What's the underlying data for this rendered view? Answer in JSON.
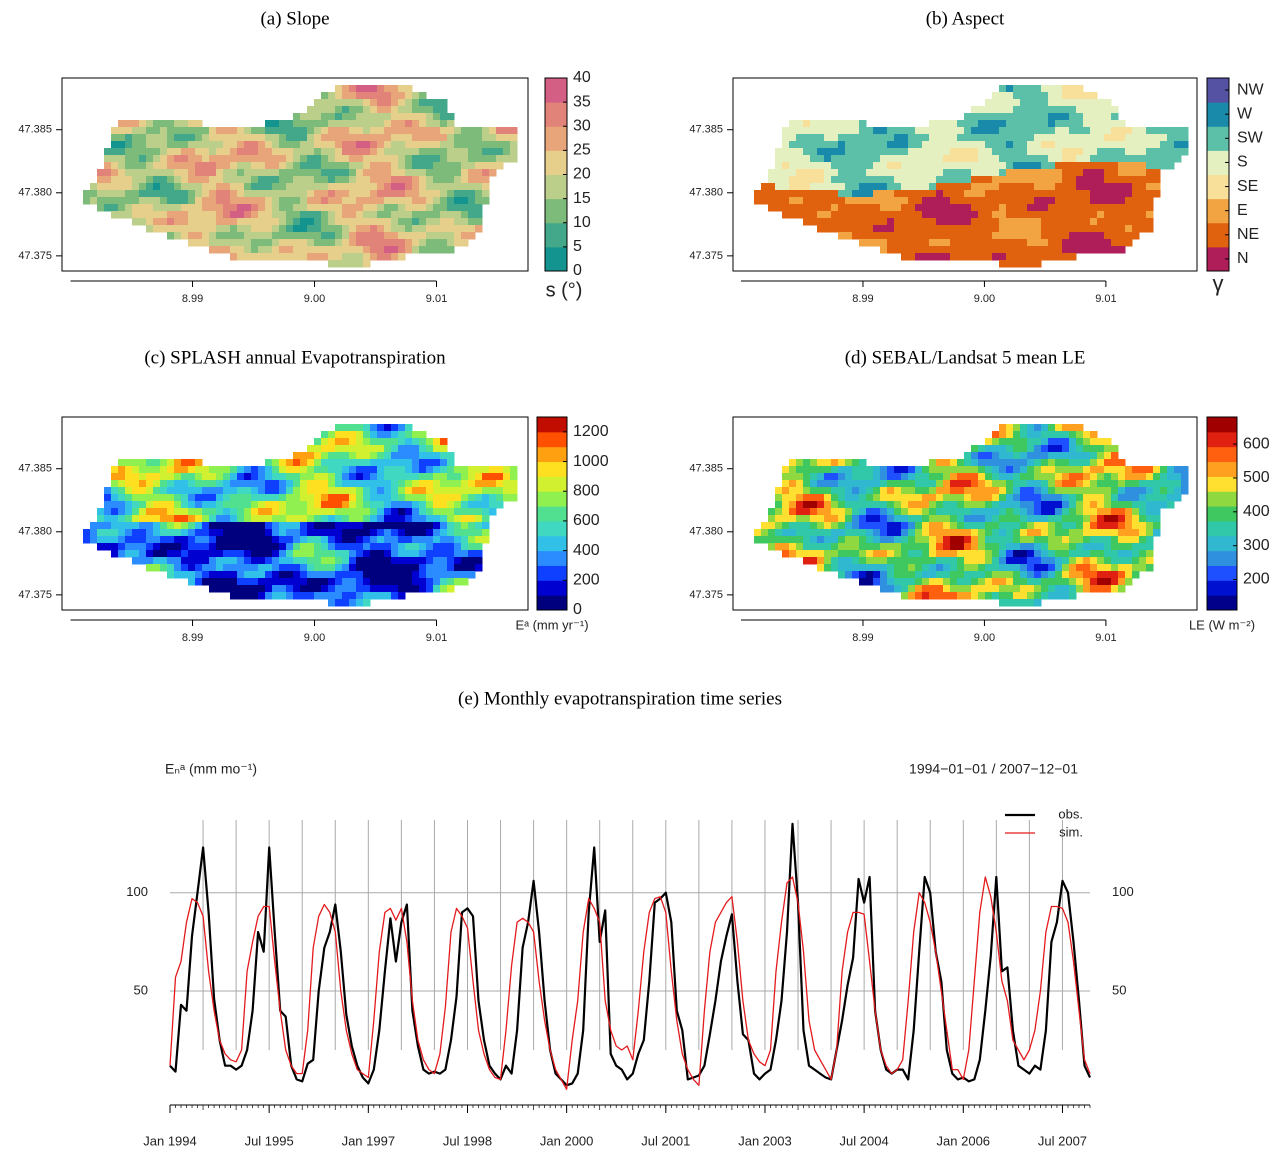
{
  "chart_data": [
    {
      "type": "raster",
      "title": "(a) Slope",
      "xlim": [
        8.9793,
        9.0175
      ],
      "ylim": [
        47.3738,
        47.3891
      ],
      "xticks": [
        8.99,
        {
          "value": 9,
          "label": "9.00"
        },
        9.01
      ],
      "yticks": [
        47.375,
        {
          "value": 47.38,
          "label": "47.380"
        },
        47.385
      ],
      "colorbar": {
        "label": "s (°)",
        "lim": [
          0,
          40
        ],
        "ticks": [
          0,
          5,
          10,
          15,
          20,
          25,
          30,
          35,
          40
        ],
        "colors": [
          "#13948f",
          "#43a889",
          "#7dbb7a",
          "#bccf8a",
          "#e5cf8a",
          "#e8a57a",
          "#e2837a",
          "#d35f85"
        ]
      }
    },
    {
      "type": "raster",
      "title": "(b) Aspect",
      "xlim": [
        8.9793,
        9.0175
      ],
      "ylim": [
        47.3738,
        47.3891
      ],
      "xticks": [
        8.99,
        {
          "value": 9,
          "label": "9.00"
        },
        9.01
      ],
      "yticks": [
        47.375,
        {
          "value": 47.38,
          "label": "47.380"
        },
        47.385
      ],
      "legend": {
        "label": "γ",
        "categories": [
          "N",
          "NE",
          "E",
          "SE",
          "S",
          "SW",
          "W",
          "NW"
        ],
        "colors": [
          "#b01e5a",
          "#e0620f",
          "#f2a443",
          "#f8e09a",
          "#e4f0c0",
          "#5cc0a8",
          "#1a8aaa",
          "#5552a3"
        ]
      }
    },
    {
      "type": "raster",
      "title": "(c) SPLASH annual Evapotranspiration",
      "xlim": [
        8.9793,
        9.0175
      ],
      "ylim": [
        47.3738,
        47.3891
      ],
      "xticks": [
        8.99,
        {
          "value": 9,
          "label": "9.00"
        },
        9.01
      ],
      "yticks": [
        47.375,
        {
          "value": 47.38,
          "label": "47.380"
        },
        47.385
      ],
      "colorbar": {
        "label": "Eᵃ (mm yr⁻¹)",
        "lim": [
          0,
          1300
        ],
        "ticks": [
          0,
          200,
          400,
          600,
          800,
          1000,
          1200
        ],
        "colors": [
          "#00007f",
          "#0000d0",
          "#1040ff",
          "#2a8cff",
          "#30c0e8",
          "#40d8c0",
          "#50e090",
          "#90f050",
          "#d0f030",
          "#ffe020",
          "#ffa010",
          "#ff5000",
          "#c00d00"
        ]
      }
    },
    {
      "type": "raster",
      "title": "(d) SEBAL/Landsat 5 mean LE",
      "xlim": [
        8.9793,
        9.0175
      ],
      "ylim": [
        47.3738,
        47.3891
      ],
      "xticks": [
        8.99,
        {
          "value": 9,
          "label": "9.00"
        },
        9.01
      ],
      "yticks": [
        47.375,
        {
          "value": 47.38,
          "label": "47.380"
        },
        47.385
      ],
      "colorbar": {
        "label": "LE (W m⁻²)",
        "lim": [
          110,
          680
        ],
        "ticks": [
          200,
          300,
          400,
          500,
          600
        ],
        "colors": [
          "#00008a",
          "#0010d0",
          "#1e50ff",
          "#3090e0",
          "#30b8d0",
          "#30c8a8",
          "#40c860",
          "#90d840",
          "#ffe030",
          "#ffa020",
          "#ff6010",
          "#e02010",
          "#a00000"
        ]
      }
    },
    {
      "type": "line",
      "title": "(e) Monthly evapotranspiration time series",
      "subtitle": "1994−01−01 / 2007−12−01",
      "y_label": "Eₙᵃ (mm mo⁻¹)",
      "x": [
        "1994-01",
        "1994-02",
        "1994-03",
        "1994-04",
        "1994-05",
        "1994-06",
        "1994-07",
        "1994-08",
        "1994-09",
        "1994-10",
        "1994-11",
        "1994-12",
        "1995-01",
        "1995-02",
        "1995-03",
        "1995-04",
        "1995-05",
        "1995-06",
        "1995-07",
        "1995-08",
        "1995-09",
        "1995-10",
        "1995-11",
        "1995-12",
        "1996-01",
        "1996-02",
        "1996-03",
        "1996-04",
        "1996-05",
        "1996-06",
        "1996-07",
        "1996-08",
        "1996-09",
        "1996-10",
        "1996-11",
        "1996-12",
        "1997-01",
        "1997-02",
        "1997-03",
        "1997-04",
        "1997-05",
        "1997-06",
        "1997-07",
        "1997-08",
        "1997-09",
        "1997-10",
        "1997-11",
        "1997-12",
        "1998-01",
        "1998-02",
        "1998-03",
        "1998-04",
        "1998-05",
        "1998-06",
        "1998-07",
        "1998-08",
        "1998-09",
        "1998-10",
        "1998-11",
        "1998-12",
        "1999-01",
        "1999-02",
        "1999-03",
        "1999-04",
        "1999-05",
        "1999-06",
        "1999-07",
        "1999-08",
        "1999-09",
        "1999-10",
        "1999-11",
        "1999-12",
        "2000-01",
        "2000-02",
        "2000-03",
        "2000-04",
        "2000-05",
        "2000-06",
        "2000-07",
        "2000-08",
        "2000-09",
        "2000-10",
        "2000-11",
        "2000-12",
        "2001-01",
        "2001-02",
        "2001-03",
        "2001-04",
        "2001-05",
        "2001-06",
        "2001-07",
        "2001-08",
        "2001-09",
        "2001-10",
        "2001-11",
        "2001-12",
        "2002-01",
        "2002-02",
        "2002-03",
        "2002-04",
        "2002-05",
        "2002-06",
        "2002-07",
        "2002-08",
        "2002-09",
        "2002-10",
        "2002-11",
        "2002-12",
        "2003-01",
        "2003-02",
        "2003-03",
        "2003-04",
        "2003-05",
        "2003-06",
        "2003-07",
        "2003-08",
        "2003-09",
        "2003-10",
        "2003-11",
        "2003-12",
        "2004-01",
        "2004-02",
        "2004-03",
        "2004-04",
        "2004-05",
        "2004-06",
        "2004-07",
        "2004-08",
        "2004-09",
        "2004-10",
        "2004-11",
        "2004-12",
        "2005-01",
        "2005-02",
        "2005-03",
        "2005-04",
        "2005-05",
        "2005-06",
        "2005-07",
        "2005-08",
        "2005-09",
        "2005-10",
        "2005-11",
        "2005-12",
        "2006-01",
        "2006-02",
        "2006-03",
        "2006-04",
        "2006-05",
        "2006-06",
        "2006-07",
        "2006-08",
        "2006-09",
        "2006-10",
        "2006-11",
        "2006-12",
        "2007-01",
        "2007-02",
        "2007-03",
        "2007-04",
        "2007-05",
        "2007-06",
        "2007-07",
        "2007-08",
        "2007-09",
        "2007-10",
        "2007-11",
        "2007-12"
      ],
      "series": [
        {
          "name": "obs.",
          "color": "#000000",
          "values": [
            12,
            9,
            43,
            40,
            78,
            100,
            123,
            90,
            46,
            25,
            12,
            12,
            10,
            12,
            20,
            40,
            80,
            70,
            123,
            80,
            40,
            37,
            12,
            5,
            4,
            13,
            15,
            50,
            72,
            80,
            94,
            70,
            38,
            22,
            12,
            6,
            3,
            10,
            30,
            60,
            87,
            65,
            85,
            94,
            40,
            22,
            10,
            8,
            9,
            8,
            10,
            25,
            47,
            90,
            92,
            88,
            45,
            25,
            12,
            8,
            5,
            12,
            8,
            30,
            72,
            85,
            106,
            80,
            45,
            20,
            8,
            5,
            2,
            3,
            8,
            30,
            90,
            123,
            75,
            91,
            18,
            12,
            10,
            5,
            8,
            18,
            25,
            55,
            95,
            97,
            100,
            85,
            40,
            30,
            5,
            6,
            7,
            12,
            28,
            45,
            65,
            78,
            89,
            55,
            28,
            25,
            8,
            5,
            8,
            10,
            25,
            45,
            80,
            135,
            95,
            30,
            12,
            10,
            8,
            6,
            5,
            20,
            35,
            53,
            67,
            107,
            95,
            108,
            40,
            20,
            10,
            8,
            10,
            10,
            5,
            30,
            70,
            108,
            100,
            70,
            55,
            20,
            8,
            5,
            6,
            4,
            5,
            15,
            40,
            68,
            108,
            60,
            62,
            30,
            12,
            10,
            8,
            12,
            10,
            30,
            75,
            85,
            106,
            100,
            75,
            45,
            12,
            6
          ]
        },
        {
          "name": "sim.",
          "color": "#e31a1c",
          "values": [
            12,
            57,
            65,
            85,
            97,
            95,
            88,
            60,
            40,
            25,
            18,
            15,
            14,
            20,
            60,
            75,
            88,
            93,
            93,
            65,
            40,
            20,
            12,
            8,
            8,
            30,
            72,
            88,
            94,
            90,
            80,
            50,
            30,
            18,
            10,
            8,
            6,
            35,
            70,
            90,
            92,
            86,
            92,
            75,
            45,
            25,
            15,
            10,
            8,
            18,
            42,
            80,
            92,
            88,
            82,
            55,
            30,
            18,
            10,
            6,
            5,
            30,
            63,
            85,
            87,
            85,
            80,
            55,
            35,
            20,
            10,
            5,
            0,
            25,
            45,
            80,
            97,
            92,
            85,
            45,
            30,
            22,
            20,
            22,
            15,
            40,
            70,
            90,
            97,
            98,
            90,
            60,
            35,
            18,
            10,
            5,
            2,
            40,
            70,
            85,
            90,
            95,
            98,
            75,
            45,
            25,
            18,
            14,
            12,
            20,
            60,
            85,
            105,
            108,
            95,
            70,
            35,
            20,
            15,
            10,
            5,
            20,
            60,
            80,
            90,
            90,
            89,
            65,
            40,
            20,
            12,
            8,
            10,
            15,
            45,
            80,
            100,
            95,
            85,
            70,
            50,
            30,
            10,
            10,
            5,
            20,
            55,
            90,
            108,
            98,
            80,
            55,
            45,
            25,
            20,
            15,
            20,
            30,
            50,
            80,
            93,
            93,
            92,
            85,
            65,
            40,
            15,
            8
          ]
        }
      ],
      "xticks": [
        {
          "value": "1994-01",
          "label": "Jan 1994"
        },
        {
          "value": "1995-07",
          "label": "Jul 1995"
        },
        {
          "value": "1997-01",
          "label": "Jan 1997"
        },
        {
          "value": "1998-07",
          "label": "Jul 1998"
        },
        {
          "value": "2000-01",
          "label": "Jan 2000"
        },
        {
          "value": "2001-07",
          "label": "Jul 2001"
        },
        {
          "value": "2003-01",
          "label": "Jan 2003"
        },
        {
          "value": "2004-07",
          "label": "Jul 2004"
        },
        {
          "value": "2006-01",
          "label": "Jan 2006"
        },
        {
          "value": "2007-07",
          "label": "Jul 2007"
        }
      ],
      "ylim": [
        -8,
        137
      ],
      "yticks": [
        50,
        100
      ],
      "y2lim": [
        -8,
        137
      ],
      "y2ticks": [
        50,
        100
      ],
      "grid": true,
      "legend": "topright"
    }
  ]
}
